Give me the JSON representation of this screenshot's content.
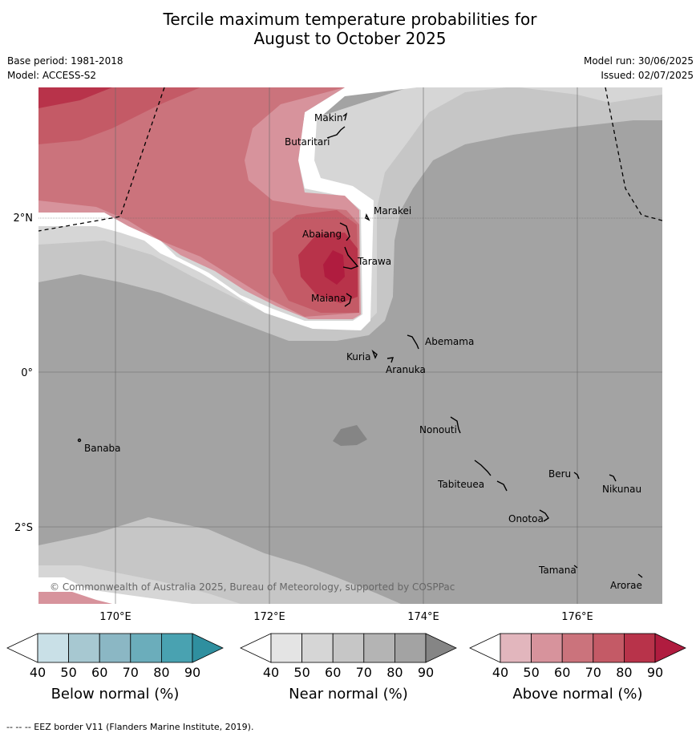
{
  "title_line1": "Tercile maximum temperature probabilities for",
  "title_line2": "August to October 2025",
  "meta": {
    "base_period": "Base period: 1981-2018",
    "model": "Model: ACCESS-S2",
    "model_run": "Model run: 30/06/2025",
    "issued": "Issued: 02/07/2025"
  },
  "axes": {
    "lat_labels": [
      "2°N",
      "0°",
      "2°S"
    ],
    "lon_labels": [
      "170°E",
      "172°E",
      "174°E",
      "176°E"
    ]
  },
  "places": [
    "Makin",
    "Butaritari",
    "Marakei",
    "Abaiang",
    "Tarawa",
    "Maiana",
    "Abemama",
    "Kuria",
    "Aranuka",
    "Nonouti",
    "Banaba",
    "Beru",
    "Nikunau",
    "Tabiteuea",
    "Onotoa",
    "Tamana",
    "Arorae"
  ],
  "copyright": "© Commonwealth of Australia 2025, Bureau of Meteorology, supported by COSPPac",
  "colorbars": [
    {
      "title": "Below normal (%)",
      "ticks": [
        "40",
        "50",
        "60",
        "70",
        "80",
        "90"
      ],
      "colors": [
        "#ffffff",
        "#c9e0e7",
        "#a7c8d1",
        "#8bb7c4",
        "#6badbb",
        "#49a2b1",
        "#2f8f9f"
      ]
    },
    {
      "title": "Near normal (%)",
      "ticks": [
        "40",
        "50",
        "60",
        "70",
        "80",
        "90"
      ],
      "colors": [
        "#ffffff",
        "#e4e4e4",
        "#d6d6d6",
        "#c6c6c6",
        "#b4b4b4",
        "#a3a3a3",
        "#858585"
      ]
    },
    {
      "title": "Above normal (%)",
      "ticks": [
        "40",
        "50",
        "60",
        "70",
        "80",
        "90"
      ],
      "colors": [
        "#ffffff",
        "#e2b6bd",
        "#d7939c",
        "#cb737c",
        "#c45a66",
        "#b8334a",
        "#b01c3f"
      ]
    }
  ],
  "footer": "--  --  -- EEZ border V11 (Flanders Marine Institute, 2019)."
}
